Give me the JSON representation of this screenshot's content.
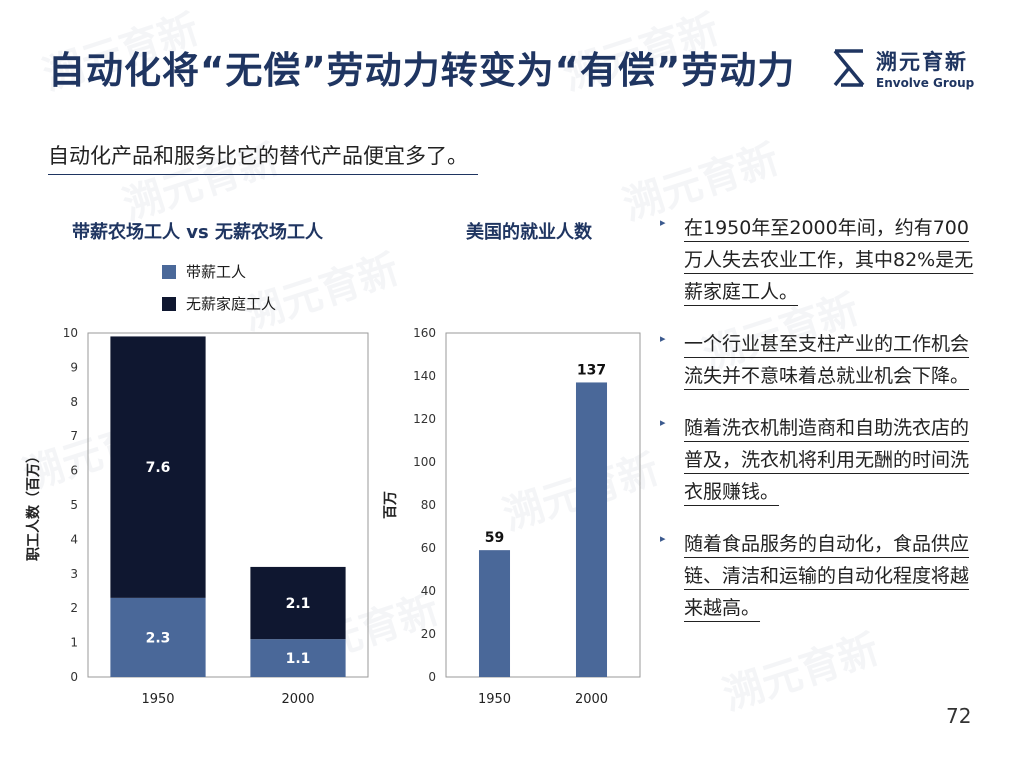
{
  "header": {
    "title": "自动化将“无偿”劳动力转变为“有偿”劳动力",
    "subtitle": "自动化产品和服务比它的替代产品便宜多了。"
  },
  "logo": {
    "cn": "溯元育新",
    "en": "Envolve Group"
  },
  "chart_data": [
    {
      "type": "bar",
      "stacked": true,
      "title": "带薪农场工人 vs 无薪农场工人",
      "categories": [
        "1950",
        "2000"
      ],
      "ylabel": "职工人数（百万）",
      "ylim": [
        0,
        10
      ],
      "yticks": [
        "0",
        "1",
        "2",
        "3",
        "4",
        "5",
        "6",
        "7",
        "8",
        "9",
        "10"
      ],
      "legend_position": "top-left",
      "series": [
        {
          "name": "带薪工人",
          "values": [
            2.3,
            1.1
          ],
          "labels": [
            "2.3",
            "1.1"
          ],
          "color": "#4a6899"
        },
        {
          "name": "无薪家庭工人",
          "values": [
            7.6,
            2.1
          ],
          "labels": [
            "7.6",
            "2.1"
          ],
          "color": "#0f1730"
        }
      ]
    },
    {
      "type": "bar",
      "title": "美国的就业人数",
      "categories": [
        "1950",
        "2000"
      ],
      "ylabel": "百万",
      "ylim": [
        0,
        160
      ],
      "yticks": [
        "0",
        "20",
        "40",
        "60",
        "80",
        "100",
        "120",
        "140",
        "160"
      ],
      "series": [
        {
          "values": [
            59,
            137
          ],
          "labels": [
            "59",
            "137"
          ],
          "color": "#4a6899"
        }
      ]
    }
  ],
  "bullets": [
    "在1950年至2000年间，约有700万人失去农业工作，其中82%是无薪家庭工人。",
    "一个行业甚至支柱产业的工作机会流失并不意味着总就业机会下降。",
    "随着洗衣机制造商和自助洗衣店的普及，洗衣机将利用无酬的时间洗衣服赚钱。",
    "随着食品服务的自动化，食品供应链、清洁和运输的自动化程度将越来越高。"
  ],
  "page_number": "72"
}
